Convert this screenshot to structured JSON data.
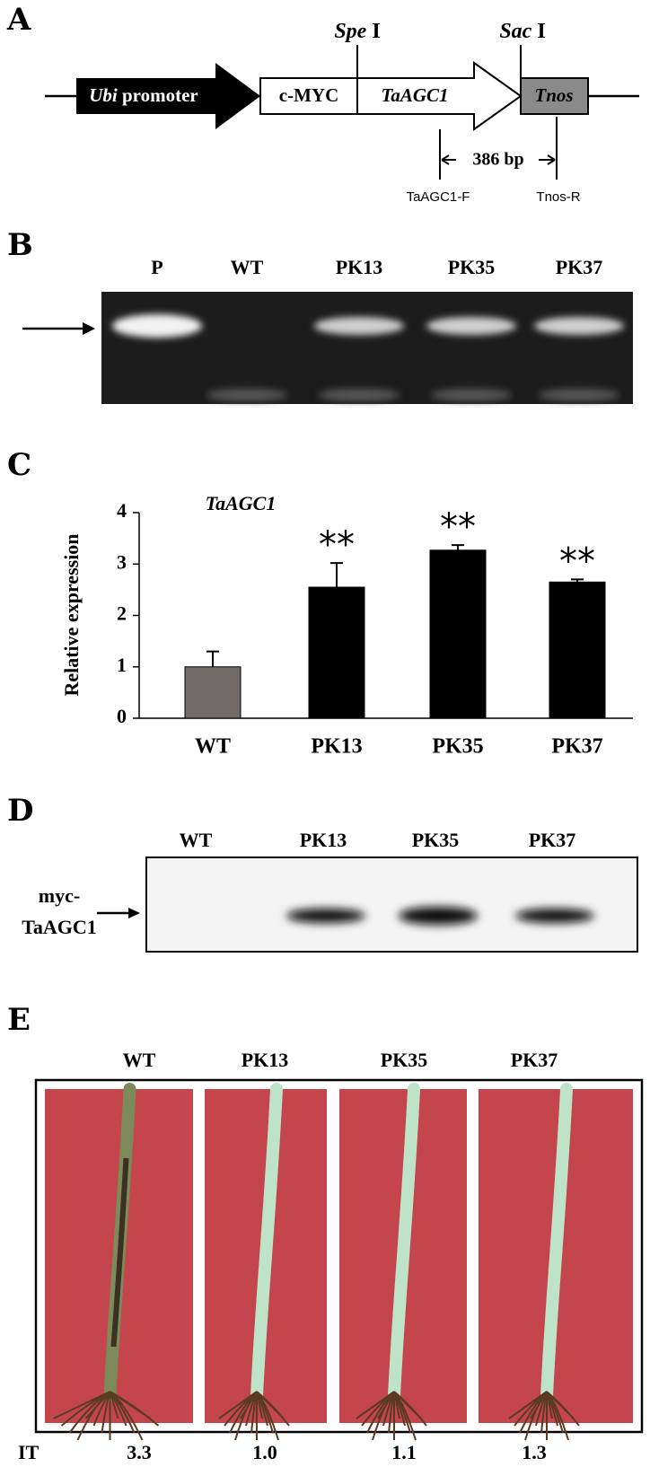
{
  "panel_a": {
    "label": "A",
    "promoter_italic": "Ubi",
    "promoter_rest": "promoter",
    "tag": "c-MYC",
    "gene": "TaAGC1",
    "terminator": "Tnos",
    "site1_italic": "Spe",
    "site1_rest": "I",
    "site2_italic": "Sac",
    "site2_rest": "I",
    "product": "386 bp",
    "primer_f": "TaAGC1-F",
    "primer_r": "Tnos-R"
  },
  "panel_b": {
    "label": "B",
    "lanes": [
      "P",
      "WT",
      "PK13",
      "PK35",
      "PK37"
    ]
  },
  "panel_c": {
    "label": "C"
  },
  "chart_data": {
    "type": "bar",
    "title": "TaAGC1",
    "y_label": "Relative expression",
    "categories": [
      "WT",
      "PK13",
      "PK35",
      "PK37"
    ],
    "values": [
      1.0,
      2.55,
      3.27,
      2.65
    ],
    "errors": [
      0.3,
      0.47,
      0.1,
      0.05
    ],
    "colors": [
      "#706b66",
      "#000000",
      "#000000",
      "#000000"
    ],
    "significance": [
      null,
      "**",
      "**",
      "**"
    ],
    "ylim": [
      0,
      4
    ],
    "yticks": [
      0,
      1,
      2,
      3,
      4
    ],
    "grid": false
  },
  "panel_d": {
    "label": "D",
    "lanes": [
      "WT",
      "PK13",
      "PK35",
      "PK37"
    ],
    "band_label": [
      "myc-",
      "TaAGC1"
    ]
  },
  "panel_e": {
    "label": "E",
    "lanes": [
      "WT",
      "PK13",
      "PK35",
      "PK37"
    ],
    "row_label": "IT",
    "scores": [
      "3.3",
      "1.0",
      "1.1",
      "1.3"
    ]
  }
}
